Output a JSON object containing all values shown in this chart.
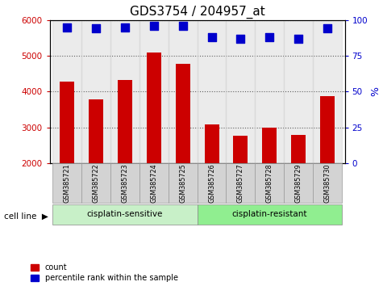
{
  "title": "GDS3754 / 204957_at",
  "categories": [
    "GSM385721",
    "GSM385722",
    "GSM385723",
    "GSM385724",
    "GSM385725",
    "GSM385726",
    "GSM385727",
    "GSM385728",
    "GSM385729",
    "GSM385730"
  ],
  "bar_values": [
    4270,
    3780,
    4330,
    5100,
    4780,
    3080,
    2770,
    3000,
    2780,
    3870
  ],
  "percentile_values": [
    95,
    94,
    95,
    96,
    96,
    88,
    87,
    88,
    87,
    94
  ],
  "bar_color": "#cc0000",
  "dot_color": "#0000cc",
  "ylim_left": [
    2000,
    6000
  ],
  "ylim_right": [
    0,
    100
  ],
  "yticks_left": [
    2000,
    3000,
    4000,
    5000,
    6000
  ],
  "yticks_right": [
    0,
    25,
    50,
    75,
    100
  ],
  "group1_label": "cisplatin-sensitive",
  "group2_label": "cisplatin-resistant",
  "group1_indices": [
    0,
    1,
    2,
    3,
    4
  ],
  "group2_indices": [
    5,
    6,
    7,
    8,
    9
  ],
  "group_bg1": "#c8f0c8",
  "group_bg2": "#90ee90",
  "cell_line_label": "cell line",
  "legend1_label": "count",
  "legend2_label": "percentile rank within the sample",
  "title_fontsize": 11,
  "tick_label_fontsize": 7.5,
  "axis_label_fontsize": 9,
  "bar_width": 0.5,
  "dot_size": 55,
  "grid_color": "#000000"
}
